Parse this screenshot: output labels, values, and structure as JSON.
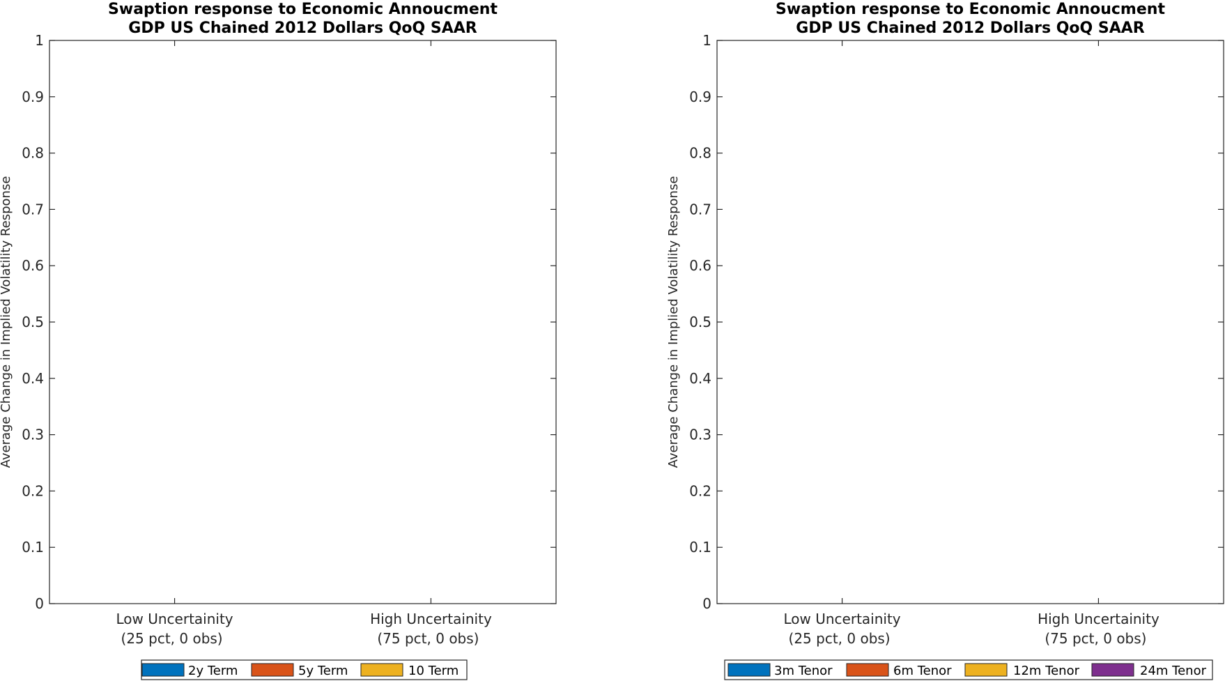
{
  "chart_data": [
    {
      "type": "bar",
      "title": "Swaption response to Economic Annoucment",
      "subtitle": "GDP US Chained 2012 Dollars QoQ SAAR",
      "ylabel": "Average Change in Implied Volatility Response",
      "xlabel": "",
      "ylim": [
        0,
        1
      ],
      "yticks": [
        "0",
        "0.1",
        "0.2",
        "0.3",
        "0.4",
        "0.5",
        "0.6",
        "0.7",
        "0.8",
        "0.9",
        "1"
      ],
      "categories": [
        [
          "Low Uncertainity",
          "(25 pct, 0 obs)"
        ],
        [
          "High Uncertainity",
          "(75 pct, 0 obs)"
        ]
      ],
      "series": [
        {
          "name": "2y Term",
          "color": "#0072BD",
          "values": [
            0,
            0
          ]
        },
        {
          "name": "5y Term",
          "color": "#D95319",
          "values": [
            0,
            0
          ]
        },
        {
          "name": "10 Term",
          "color": "#EDB120",
          "values": [
            0,
            0
          ]
        }
      ],
      "legend": "bottom",
      "grid": false
    },
    {
      "type": "bar",
      "title": "Swaption response to Economic Annoucment",
      "subtitle": "GDP US Chained 2012 Dollars QoQ SAAR",
      "ylabel": "Average Change in Implied Volatility Response",
      "xlabel": "",
      "ylim": [
        0,
        1
      ],
      "yticks": [
        "0",
        "0.1",
        "0.2",
        "0.3",
        "0.4",
        "0.5",
        "0.6",
        "0.7",
        "0.8",
        "0.9",
        "1"
      ],
      "categories": [
        [
          "Low Uncertainity",
          "(25 pct, 0 obs)"
        ],
        [
          "High Uncertainity",
          "(75 pct, 0 obs)"
        ]
      ],
      "series": [
        {
          "name": "3m Tenor",
          "color": "#0072BD",
          "values": [
            0,
            0
          ]
        },
        {
          "name": "6m Tenor",
          "color": "#D95319",
          "values": [
            0,
            0
          ]
        },
        {
          "name": "12m Tenor",
          "color": "#EDB120",
          "values": [
            0,
            0
          ]
        },
        {
          "name": "24m Tenor",
          "color": "#7E2F8E",
          "values": [
            0,
            0
          ]
        }
      ],
      "legend": "bottom",
      "grid": false
    }
  ]
}
